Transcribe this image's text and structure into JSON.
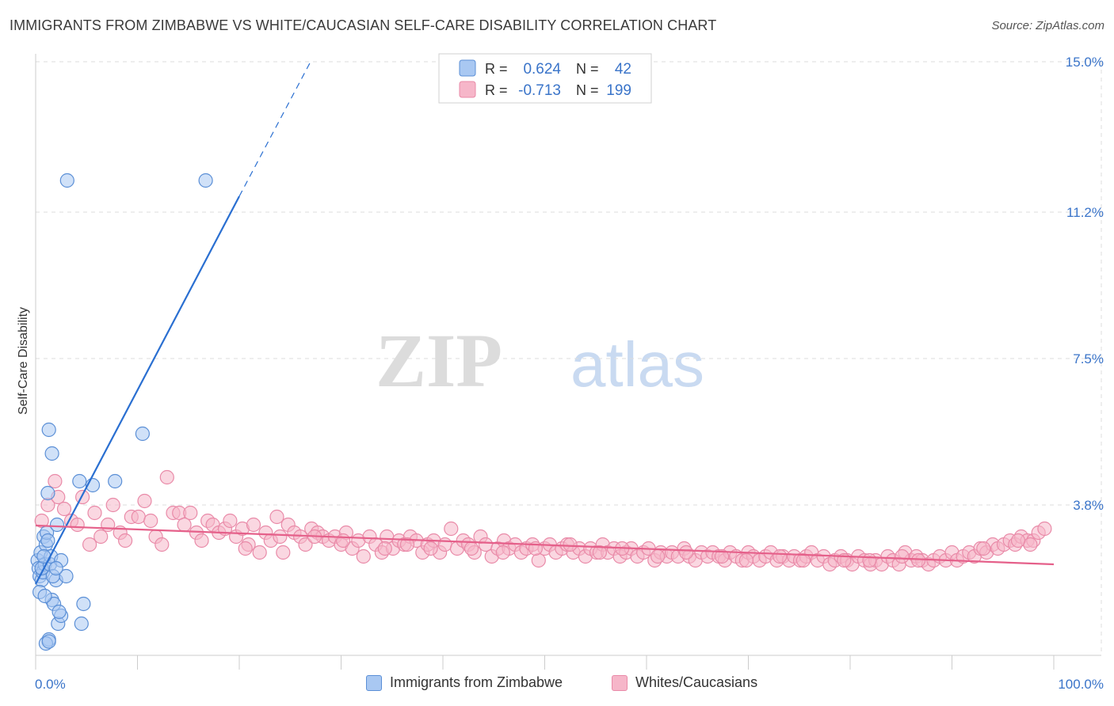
{
  "title": "IMMIGRANTS FROM ZIMBABWE VS WHITE/CAUCASIAN SELF-CARE DISABILITY CORRELATION CHART",
  "source": "Source: ZipAtlas.com",
  "watermark": {
    "zip": "ZIP",
    "atlas": "atlas"
  },
  "colors": {
    "blue_fill": "#a9c8f2",
    "blue_stroke": "#5b8fd6",
    "blue_line": "#2a6fd1",
    "pink_fill": "#f6b6c9",
    "pink_stroke": "#e98aa8",
    "pink_line": "#e5608a",
    "axis_label": "#3a74c9",
    "grid": "#dddddd"
  },
  "legend_stats": [
    {
      "r_label": "R =",
      "r_value": "0.624",
      "n_label": "N =",
      "n_value": "42"
    },
    {
      "r_label": "R =",
      "r_value": "-0.713",
      "n_label": "N =",
      "n_value": "199"
    }
  ],
  "legend_bottom": [
    "Immigrants from Zimbabwe",
    "Whites/Caucasians"
  ],
  "chart_data": {
    "type": "scatter",
    "title": "IMMIGRANTS FROM ZIMBABWE VS WHITE/CAUCASIAN SELF-CARE DISABILITY CORRELATION CHART",
    "xlabel": "",
    "ylabel": "Self-Care Disability",
    "xlim": [
      0,
      100
    ],
    "ylim": [
      0,
      15.0
    ],
    "x_tick_labels": [
      "0.0%",
      "100.0%"
    ],
    "y_ticks": [
      3.8,
      7.5,
      11.2,
      15.0
    ],
    "y_tick_labels": [
      "3.8%",
      "7.5%",
      "11.2%",
      "15.0%"
    ],
    "series": [
      {
        "name": "Immigrants from Zimbabwe",
        "r": 0.624,
        "n": 42,
        "trend": {
          "x0": 0.0,
          "y0": 1.8,
          "x1": 20.0,
          "y1": 11.6,
          "dash_to_x": 27.0,
          "dash_to_y": 15.0
        },
        "points": [
          [
            0.2,
            2.4
          ],
          [
            0.3,
            2.2
          ],
          [
            0.4,
            2.0
          ],
          [
            0.5,
            2.6
          ],
          [
            0.6,
            1.9
          ],
          [
            0.7,
            2.1
          ],
          [
            0.8,
            3.0
          ],
          [
            0.9,
            2.3
          ],
          [
            1.0,
            2.8
          ],
          [
            0.4,
            1.6
          ],
          [
            1.1,
            3.1
          ],
          [
            1.2,
            2.9
          ],
          [
            0.6,
            2.2
          ],
          [
            1.4,
            2.3
          ],
          [
            1.6,
            1.4
          ],
          [
            1.8,
            1.3
          ],
          [
            0.9,
            1.5
          ],
          [
            2.0,
            1.9
          ],
          [
            1.5,
            2.5
          ],
          [
            1.7,
            2.0
          ],
          [
            2.2,
            0.8
          ],
          [
            2.5,
            1.0
          ],
          [
            2.3,
            1.1
          ],
          [
            1.3,
            0.4
          ],
          [
            1.2,
            4.1
          ],
          [
            2.1,
            3.3
          ],
          [
            2.5,
            2.4
          ],
          [
            1.3,
            5.7
          ],
          [
            1.6,
            5.1
          ],
          [
            3.0,
            2.0
          ],
          [
            4.3,
            4.4
          ],
          [
            4.5,
            0.8
          ],
          [
            4.7,
            1.3
          ],
          [
            5.6,
            4.3
          ],
          [
            7.8,
            4.4
          ],
          [
            10.5,
            5.6
          ],
          [
            3.1,
            12.0
          ],
          [
            16.7,
            12.0
          ],
          [
            1.0,
            0.3
          ],
          [
            1.3,
            0.35
          ],
          [
            0.8,
            2.5
          ],
          [
            2.0,
            2.2
          ]
        ]
      },
      {
        "name": "Whites/Caucasians",
        "r": -0.713,
        "n": 199,
        "trend": {
          "x0": 0.0,
          "y0": 3.28,
          "x1": 100.0,
          "y1": 2.3
        },
        "points": [
          [
            0.6,
            3.4
          ],
          [
            1.2,
            3.8
          ],
          [
            1.9,
            4.4
          ],
          [
            2.2,
            4.0
          ],
          [
            2.8,
            3.7
          ],
          [
            3.5,
            3.4
          ],
          [
            4.1,
            3.3
          ],
          [
            4.6,
            4.0
          ],
          [
            5.3,
            2.8
          ],
          [
            5.8,
            3.6
          ],
          [
            6.4,
            3.0
          ],
          [
            7.1,
            3.3
          ],
          [
            7.6,
            3.8
          ],
          [
            8.3,
            3.1
          ],
          [
            8.8,
            2.9
          ],
          [
            9.4,
            3.5
          ],
          [
            10.1,
            3.5
          ],
          [
            10.7,
            3.9
          ],
          [
            11.3,
            3.4
          ],
          [
            11.8,
            3.0
          ],
          [
            12.4,
            2.8
          ],
          [
            12.9,
            4.5
          ],
          [
            13.5,
            3.6
          ],
          [
            14.1,
            3.6
          ],
          [
            14.6,
            3.3
          ],
          [
            15.2,
            3.6
          ],
          [
            15.8,
            3.1
          ],
          [
            16.3,
            2.9
          ],
          [
            16.9,
            3.4
          ],
          [
            17.4,
            3.3
          ],
          [
            18.0,
            3.1
          ],
          [
            18.6,
            3.2
          ],
          [
            19.1,
            3.4
          ],
          [
            19.7,
            3.0
          ],
          [
            20.3,
            3.2
          ],
          [
            20.9,
            2.8
          ],
          [
            21.4,
            3.3
          ],
          [
            22.0,
            2.6
          ],
          [
            22.6,
            3.1
          ],
          [
            23.1,
            2.9
          ],
          [
            23.7,
            3.5
          ],
          [
            24.3,
            2.6
          ],
          [
            24.8,
            3.3
          ],
          [
            25.4,
            3.1
          ],
          [
            26.0,
            3.0
          ],
          [
            26.5,
            2.8
          ],
          [
            27.1,
            3.2
          ],
          [
            27.7,
            3.1
          ],
          [
            28.2,
            3.0
          ],
          [
            28.8,
            2.9
          ],
          [
            29.4,
            3.0
          ],
          [
            30.0,
            2.8
          ],
          [
            30.5,
            3.1
          ],
          [
            31.1,
            2.7
          ],
          [
            31.7,
            2.9
          ],
          [
            32.2,
            2.5
          ],
          [
            32.8,
            3.0
          ],
          [
            33.4,
            2.8
          ],
          [
            34.0,
            2.6
          ],
          [
            34.5,
            3.0
          ],
          [
            35.1,
            2.7
          ],
          [
            35.7,
            2.9
          ],
          [
            36.2,
            2.8
          ],
          [
            36.8,
            3.0
          ],
          [
            37.4,
            2.9
          ],
          [
            38.0,
            2.6
          ],
          [
            38.5,
            2.8
          ],
          [
            39.1,
            2.9
          ],
          [
            39.7,
            2.6
          ],
          [
            40.2,
            2.8
          ],
          [
            40.8,
            3.2
          ],
          [
            41.4,
            2.7
          ],
          [
            42.0,
            2.9
          ],
          [
            42.5,
            2.8
          ],
          [
            43.1,
            2.6
          ],
          [
            43.7,
            3.0
          ],
          [
            44.2,
            2.8
          ],
          [
            44.8,
            2.5
          ],
          [
            45.4,
            2.7
          ],
          [
            46.0,
            2.9
          ],
          [
            46.5,
            2.7
          ],
          [
            47.1,
            2.8
          ],
          [
            47.7,
            2.6
          ],
          [
            48.2,
            2.7
          ],
          [
            48.8,
            2.8
          ],
          [
            49.4,
            2.4
          ],
          [
            50.0,
            2.7
          ],
          [
            50.5,
            2.8
          ],
          [
            51.1,
            2.6
          ],
          [
            51.7,
            2.7
          ],
          [
            52.2,
            2.8
          ],
          [
            52.8,
            2.6
          ],
          [
            53.4,
            2.7
          ],
          [
            54.0,
            2.5
          ],
          [
            54.5,
            2.7
          ],
          [
            55.1,
            2.6
          ],
          [
            55.7,
            2.8
          ],
          [
            56.2,
            2.6
          ],
          [
            56.8,
            2.7
          ],
          [
            57.4,
            2.5
          ],
          [
            58.0,
            2.6
          ],
          [
            58.5,
            2.7
          ],
          [
            59.1,
            2.5
          ],
          [
            59.7,
            2.6
          ],
          [
            60.2,
            2.7
          ],
          [
            60.8,
            2.4
          ],
          [
            61.4,
            2.6
          ],
          [
            62.0,
            2.5
          ],
          [
            62.5,
            2.6
          ],
          [
            63.1,
            2.5
          ],
          [
            63.7,
            2.7
          ],
          [
            64.2,
            2.5
          ],
          [
            64.8,
            2.4
          ],
          [
            65.4,
            2.6
          ],
          [
            66.0,
            2.5
          ],
          [
            66.5,
            2.6
          ],
          [
            67.1,
            2.5
          ],
          [
            67.7,
            2.4
          ],
          [
            68.2,
            2.6
          ],
          [
            68.8,
            2.5
          ],
          [
            69.4,
            2.4
          ],
          [
            70.0,
            2.6
          ],
          [
            70.5,
            2.5
          ],
          [
            71.1,
            2.4
          ],
          [
            71.7,
            2.5
          ],
          [
            72.2,
            2.6
          ],
          [
            72.8,
            2.4
          ],
          [
            73.4,
            2.5
          ],
          [
            74.0,
            2.4
          ],
          [
            74.5,
            2.5
          ],
          [
            75.1,
            2.4
          ],
          [
            75.7,
            2.5
          ],
          [
            76.2,
            2.6
          ],
          [
            76.8,
            2.4
          ],
          [
            77.4,
            2.5
          ],
          [
            78.0,
            2.3
          ],
          [
            78.5,
            2.4
          ],
          [
            79.1,
            2.5
          ],
          [
            79.7,
            2.4
          ],
          [
            80.2,
            2.3
          ],
          [
            80.8,
            2.5
          ],
          [
            81.4,
            2.4
          ],
          [
            82.0,
            2.3
          ],
          [
            82.5,
            2.4
          ],
          [
            83.1,
            2.3
          ],
          [
            83.7,
            2.5
          ],
          [
            84.2,
            2.4
          ],
          [
            84.8,
            2.3
          ],
          [
            85.4,
            2.6
          ],
          [
            86.0,
            2.4
          ],
          [
            86.5,
            2.5
          ],
          [
            87.1,
            2.4
          ],
          [
            87.7,
            2.3
          ],
          [
            88.2,
            2.4
          ],
          [
            88.8,
            2.5
          ],
          [
            89.4,
            2.4
          ],
          [
            90.0,
            2.6
          ],
          [
            90.5,
            2.4
          ],
          [
            91.1,
            2.5
          ],
          [
            91.7,
            2.6
          ],
          [
            92.2,
            2.5
          ],
          [
            92.8,
            2.7
          ],
          [
            93.4,
            2.6
          ],
          [
            94.0,
            2.8
          ],
          [
            94.5,
            2.7
          ],
          [
            95.1,
            2.8
          ],
          [
            95.7,
            2.9
          ],
          [
            96.2,
            2.8
          ],
          [
            96.8,
            3.0
          ],
          [
            97.4,
            2.9
          ],
          [
            98.0,
            2.9
          ],
          [
            98.5,
            3.1
          ],
          [
            99.1,
            3.2
          ],
          [
            34.3,
            2.7
          ],
          [
            45.9,
            2.6
          ],
          [
            57.6,
            2.7
          ],
          [
            69.8,
            2.4
          ],
          [
            81.9,
            2.4
          ],
          [
            93.1,
            2.7
          ],
          [
            20.6,
            2.7
          ],
          [
            27.4,
            3.0
          ],
          [
            38.8,
            2.7
          ],
          [
            52.5,
            2.8
          ],
          [
            63.9,
            2.6
          ],
          [
            75.4,
            2.4
          ],
          [
            86.7,
            2.4
          ],
          [
            97.7,
            2.8
          ],
          [
            24.0,
            3.0
          ],
          [
            36.5,
            2.8
          ],
          [
            49.1,
            2.7
          ],
          [
            61.1,
            2.5
          ],
          [
            73.1,
            2.5
          ],
          [
            85.1,
            2.5
          ],
          [
            96.5,
            2.9
          ],
          [
            30.2,
            2.9
          ],
          [
            42.8,
            2.7
          ],
          [
            55.4,
            2.6
          ],
          [
            67.4,
            2.5
          ],
          [
            79.4,
            2.4
          ]
        ]
      }
    ]
  }
}
